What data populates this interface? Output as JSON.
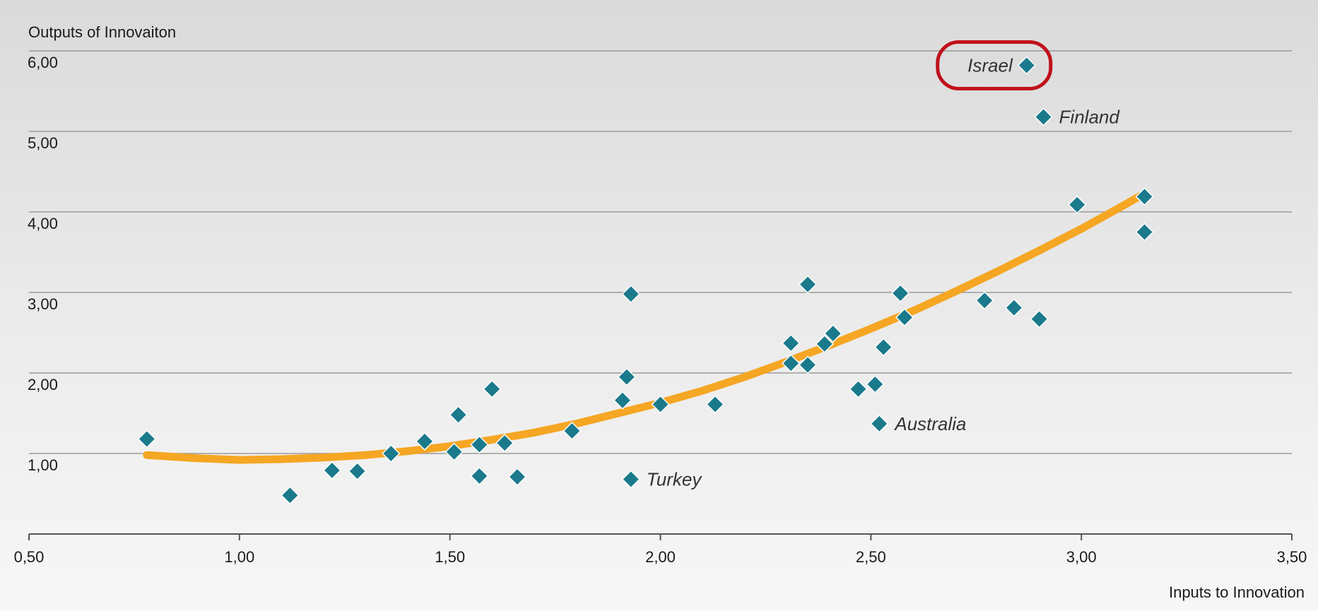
{
  "chart_data": {
    "type": "scatter",
    "ylabel": "Outputs of Innovaiton",
    "xlabel": "Inputs to Innovation",
    "xlim": [
      0.5,
      3.5
    ],
    "ylim": [
      0,
      6
    ],
    "x_ticks": [
      {
        "value": 0.5,
        "label": "0,50"
      },
      {
        "value": 1.0,
        "label": "1,00"
      },
      {
        "value": 1.5,
        "label": "1,50"
      },
      {
        "value": 2.0,
        "label": "2,00"
      },
      {
        "value": 2.5,
        "label": "2,50"
      },
      {
        "value": 3.0,
        "label": "3,00"
      },
      {
        "value": 3.5,
        "label": "3,50"
      }
    ],
    "y_ticks": [
      {
        "value": 1,
        "label": "1,00"
      },
      {
        "value": 2,
        "label": "2,00"
      },
      {
        "value": 3,
        "label": "3,00"
      },
      {
        "value": 4,
        "label": "4,00"
      },
      {
        "value": 5,
        "label": "5,00"
      },
      {
        "value": 6,
        "label": "6,00"
      }
    ],
    "grid": "horizontal",
    "colors": {
      "marker": "#1a7a8c",
      "trend": "#f5a623",
      "highlight": "#c0111b",
      "grid": "#9a9a9a",
      "axis": "#555555"
    },
    "points": [
      [
        0.78,
        1.18
      ],
      [
        1.12,
        0.48
      ],
      [
        1.22,
        0.79
      ],
      [
        1.28,
        0.78
      ],
      [
        1.36,
        1.0
      ],
      [
        1.44,
        1.15
      ],
      [
        1.51,
        1.02
      ],
      [
        1.52,
        1.48
      ],
      [
        1.57,
        1.11
      ],
      [
        1.57,
        0.72
      ],
      [
        1.6,
        1.8
      ],
      [
        1.63,
        1.13
      ],
      [
        1.66,
        0.71
      ],
      [
        1.79,
        1.28
      ],
      [
        1.91,
        1.66
      ],
      [
        1.92,
        1.95
      ],
      [
        1.93,
        2.98
      ],
      [
        1.93,
        0.68
      ],
      [
        2.0,
        1.61
      ],
      [
        2.13,
        1.61
      ],
      [
        2.31,
        2.37
      ],
      [
        2.31,
        2.12
      ],
      [
        2.35,
        3.1
      ],
      [
        2.35,
        2.1
      ],
      [
        2.39,
        2.36
      ],
      [
        2.41,
        2.49
      ],
      [
        2.47,
        1.8
      ],
      [
        2.51,
        1.86
      ],
      [
        2.52,
        1.37
      ],
      [
        2.53,
        2.32
      ],
      [
        2.57,
        2.99
      ],
      [
        2.58,
        2.69
      ],
      [
        2.77,
        2.9
      ],
      [
        2.84,
        2.81
      ],
      [
        2.87,
        5.82
      ],
      [
        2.9,
        2.67
      ],
      [
        2.91,
        5.18
      ],
      [
        2.99,
        4.09
      ],
      [
        3.15,
        4.19
      ],
      [
        3.15,
        3.75
      ]
    ],
    "trendline": [
      [
        0.78,
        0.98
      ],
      [
        0.9,
        0.94
      ],
      [
        1.0,
        0.92
      ],
      [
        1.1,
        0.93
      ],
      [
        1.2,
        0.95
      ],
      [
        1.3,
        0.98
      ],
      [
        1.4,
        1.03
      ],
      [
        1.5,
        1.09
      ],
      [
        1.6,
        1.17
      ],
      [
        1.7,
        1.26
      ],
      [
        1.8,
        1.37
      ],
      [
        1.9,
        1.5
      ],
      [
        2.0,
        1.63
      ],
      [
        2.1,
        1.78
      ],
      [
        2.2,
        1.95
      ],
      [
        2.3,
        2.14
      ],
      [
        2.4,
        2.34
      ],
      [
        2.5,
        2.55
      ],
      [
        2.6,
        2.77
      ],
      [
        2.7,
        3.01
      ],
      [
        2.8,
        3.26
      ],
      [
        2.9,
        3.52
      ],
      [
        3.0,
        3.79
      ],
      [
        3.1,
        4.08
      ],
      [
        3.14,
        4.2
      ]
    ],
    "annotations": [
      {
        "text": "Israel",
        "x": 2.87,
        "y": 5.82,
        "side": "left",
        "highlighted": true
      },
      {
        "text": "Finland",
        "x": 2.91,
        "y": 5.18,
        "side": "right"
      },
      {
        "text": "Australia",
        "x": 2.52,
        "y": 1.37,
        "side": "right"
      },
      {
        "text": "Turkey",
        "x": 1.93,
        "y": 0.68,
        "side": "right"
      }
    ]
  }
}
